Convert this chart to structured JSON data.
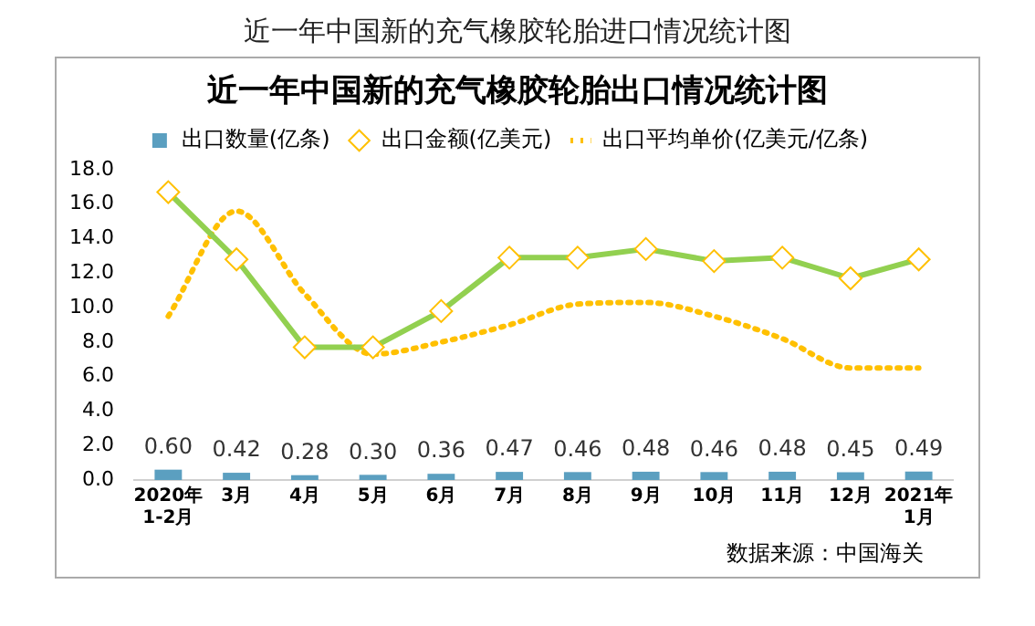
{
  "chart_data": {
    "type": "bar",
    "title": "近一年中国新的充气橡胶轮胎进口情况统计图",
    "subtitle": "近一年中国新的充气橡胶轮胎出口情况统计图",
    "categories": [
      "2020年 1-2月",
      "3月",
      "4月",
      "5月",
      "6月",
      "7月",
      "8月",
      "9月",
      "10月",
      "11月",
      "12月",
      "2021年 1月"
    ],
    "series": [
      {
        "name": "出口数量(亿条)",
        "color": "#5b9fc0",
        "values": [
          0.6,
          0.42,
          0.28,
          0.3,
          0.36,
          0.47,
          0.46,
          0.48,
          0.46,
          0.48,
          0.45,
          0.49
        ],
        "value_labels": [
          "0.60",
          "0.42",
          "0.28",
          "0.30",
          "0.36",
          "0.47",
          "0.46",
          "0.48",
          "0.46",
          "0.48",
          "0.45",
          "0.49"
        ]
      },
      {
        "name": "出口金额(亿美元)",
        "type": "line",
        "color": "#92d050",
        "marker": "diamond",
        "line_style": "solid",
        "values": [
          16.7,
          12.8,
          7.7,
          7.7,
          9.8,
          12.9,
          12.9,
          13.4,
          12.7,
          12.9,
          11.7,
          12.8
        ]
      },
      {
        "name": "出口平均单价(亿美元/亿条)",
        "type": "line",
        "color": "#ffc000",
        "marker": "none",
        "line_style": "dotted",
        "values": [
          9.5,
          15.6,
          10.8,
          7.3,
          8.0,
          9.0,
          10.2,
          10.3,
          9.5,
          8.2,
          6.5,
          6.5
        ]
      }
    ],
    "ylim": [
      0,
      18
    ],
    "yticks": [
      {
        "value": 0,
        "label": "0.0"
      },
      {
        "value": 2,
        "label": "2.0"
      },
      {
        "value": 4,
        "label": "4.0"
      },
      {
        "value": 6,
        "label": "6.0"
      },
      {
        "value": 8,
        "label": "8.0"
      },
      {
        "value": 10,
        "label": "10.0"
      },
      {
        "value": 12,
        "label": "12.0"
      },
      {
        "value": 14,
        "label": "14.0"
      },
      {
        "value": 16,
        "label": "16.0"
      },
      {
        "value": 18,
        "label": "18.0"
      }
    ],
    "grid": false,
    "legend": "top",
    "annotations": [
      "数据来源：中国海关"
    ]
  }
}
